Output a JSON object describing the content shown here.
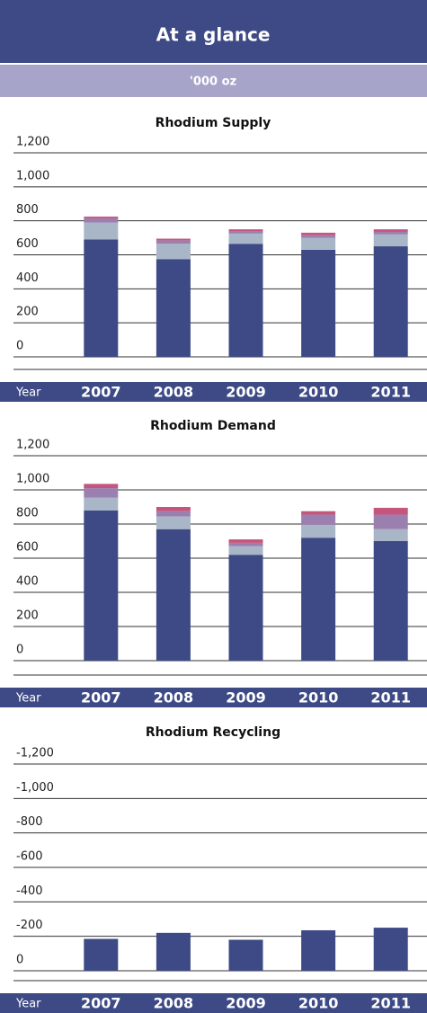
{
  "header": {
    "title": "At a glance",
    "subtitle": "'000 oz"
  },
  "chart_data": [
    {
      "type": "bar",
      "stacked": true,
      "title": "Rhodium Supply",
      "x_label": "Year",
      "categories": [
        "2007",
        "2008",
        "2009",
        "2010",
        "2011"
      ],
      "series": [
        {
          "color": "#3d4a86",
          "values": [
            690,
            575,
            665,
            630,
            650
          ]
        },
        {
          "color": "#a9b6c7",
          "values": [
            100,
            90,
            60,
            70,
            70
          ]
        },
        {
          "color": "#9b7fae",
          "values": [
            25,
            20,
            15,
            15,
            15
          ]
        },
        {
          "color": "#c4557c",
          "values": [
            10,
            10,
            10,
            15,
            15
          ]
        }
      ],
      "ylim": [
        0,
        1200
      ],
      "yticks": [
        0,
        200,
        400,
        600,
        800,
        {
          "value": 1000,
          "label": "1,000"
        },
        {
          "value": 1200,
          "label": "1,200"
        }
      ],
      "grid": true
    },
    {
      "type": "bar",
      "stacked": true,
      "title": "Rhodium Demand",
      "x_label": "Year",
      "categories": [
        "2007",
        "2008",
        "2009",
        "2010",
        "2011"
      ],
      "series": [
        {
          "color": "#3d4a86",
          "values": [
            880,
            770,
            620,
            720,
            700
          ]
        },
        {
          "color": "#a9b6c7",
          "values": [
            75,
            75,
            50,
            75,
            70
          ]
        },
        {
          "color": "#9b7fae",
          "values": [
            55,
            30,
            20,
            60,
            85
          ]
        },
        {
          "color": "#c4557c",
          "values": [
            25,
            25,
            20,
            20,
            40
          ]
        }
      ],
      "ylim": [
        0,
        1200
      ],
      "yticks": [
        0,
        200,
        400,
        600,
        800,
        {
          "value": 1000,
          "label": "1,000"
        },
        {
          "value": 1200,
          "label": "1,200"
        }
      ],
      "grid": true
    },
    {
      "type": "bar",
      "title": "Rhodium Recycling",
      "x_label": "Year",
      "categories": [
        "2007",
        "2008",
        "2009",
        "2010",
        "2011"
      ],
      "color": "#3d4a86",
      "values": [
        -185,
        -220,
        -180,
        -235,
        -250
      ],
      "ylim": [
        0,
        -1200
      ],
      "yticks": [
        0,
        -200,
        -400,
        -600,
        -800,
        {
          "value": -1000,
          "label": "-1,000"
        },
        {
          "value": -1200,
          "label": "-1,200"
        }
      ],
      "grid": true
    }
  ]
}
